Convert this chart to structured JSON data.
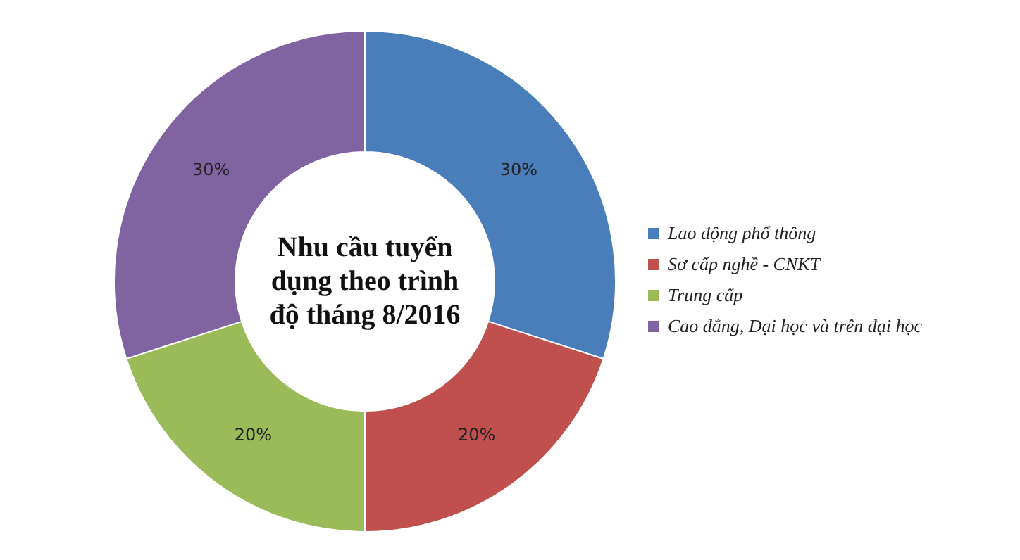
{
  "chart_data": {
    "type": "donut",
    "title": "Nhu cầu tuyển dụng theo trình độ tháng 8/2016",
    "categories": [
      "Lao động phổ thông",
      "Sơ cấp nghề - CNKT",
      "Trung cấp",
      "Cao đẳng, Đại học và trên đại học"
    ],
    "values": [
      30,
      20,
      20,
      30
    ],
    "colors": [
      "#4a7ebb",
      "#c0504d",
      "#9bbb59",
      "#8064a2"
    ],
    "value_labels": [
      "30%",
      "20%",
      "20%",
      "30%"
    ],
    "legend": "right"
  }
}
